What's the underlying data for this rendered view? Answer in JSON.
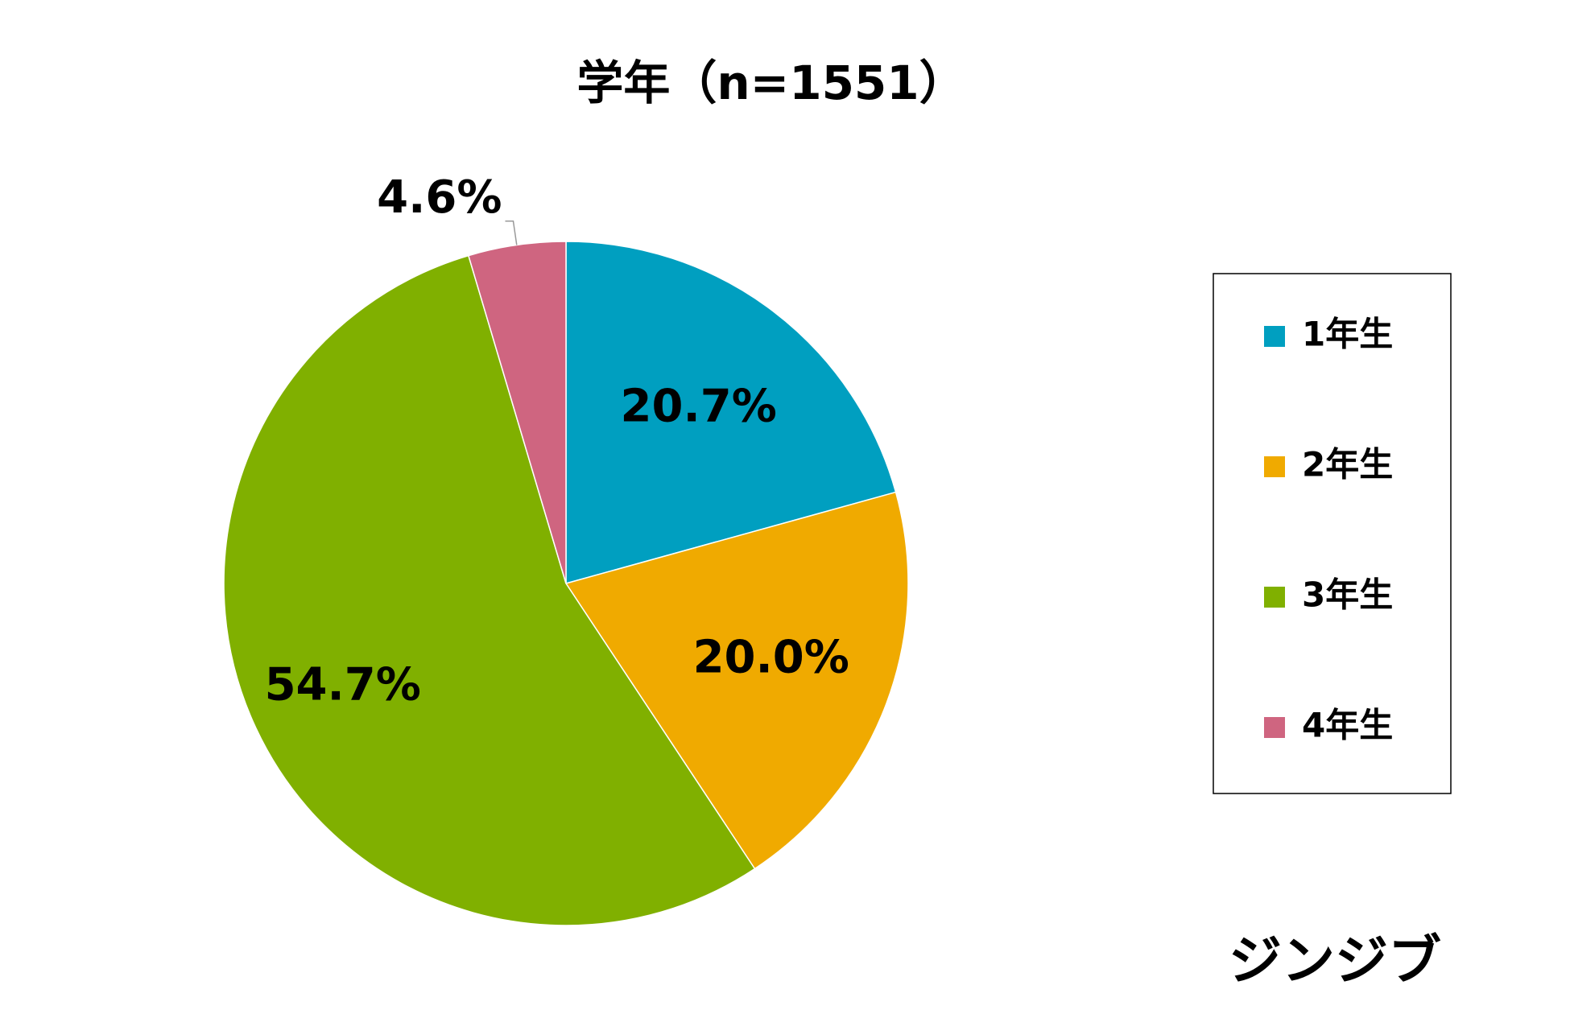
{
  "chart_data": {
    "type": "pie",
    "title": "学年（n=1551）",
    "categories": [
      "1年生",
      "2年生",
      "3年生",
      "4年生"
    ],
    "values": [
      20.7,
      20.0,
      54.7,
      4.6
    ],
    "value_labels": [
      "20.7%",
      "20.0%",
      "54.7%",
      "4.6%"
    ],
    "colors": [
      "#009fc0",
      "#f0aa00",
      "#80b000",
      "#cf6580"
    ],
    "legend": "right"
  },
  "logo": "ジンジブ"
}
